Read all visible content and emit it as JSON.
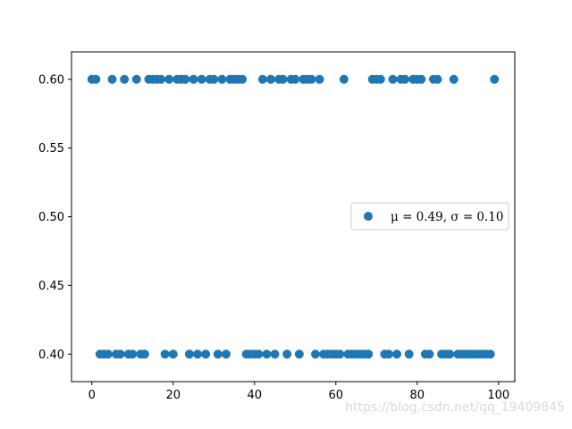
{
  "chart_data": {
    "type": "scatter",
    "title": "",
    "xlabel": "",
    "ylabel": "",
    "xlim": [
      -5,
      104
    ],
    "ylim": [
      0.38,
      0.62
    ],
    "xticks": [
      0,
      20,
      40,
      60,
      80,
      100
    ],
    "yticks": [
      0.4,
      0.45,
      0.5,
      0.55,
      0.6
    ],
    "xtick_labels": [
      "0",
      "20",
      "40",
      "60",
      "80",
      "100"
    ],
    "ytick_labels": [
      "0.40",
      "0.45",
      "0.50",
      "0.55",
      "0.60"
    ],
    "grid": false,
    "legend": {
      "placement": "center-right",
      "label": "μ = 0.49,  σ = 0.10"
    },
    "series": [
      {
        "name": "μ = 0.49,  σ = 0.10",
        "color": "#1f77b4",
        "x": [
          0,
          1,
          2,
          3,
          4,
          5,
          6,
          7,
          8,
          9,
          10,
          11,
          12,
          13,
          14,
          15,
          16,
          17,
          18,
          19,
          20,
          21,
          22,
          23,
          24,
          25,
          26,
          27,
          28,
          29,
          30,
          31,
          32,
          33,
          34,
          35,
          36,
          37,
          38,
          39,
          40,
          41,
          42,
          43,
          44,
          45,
          46,
          47,
          48,
          49,
          50,
          51,
          52,
          53,
          54,
          55,
          56,
          57,
          58,
          59,
          60,
          61,
          62,
          63,
          64,
          65,
          66,
          67,
          68,
          69,
          70,
          71,
          72,
          73,
          74,
          75,
          76,
          77,
          78,
          79,
          80,
          81,
          82,
          83,
          84,
          85,
          86,
          87,
          88,
          89,
          90,
          91,
          92,
          93,
          94,
          95,
          96,
          97,
          98,
          99
        ],
        "y": [
          0.6,
          0.6,
          0.4,
          0.4,
          0.4,
          0.6,
          0.4,
          0.4,
          0.6,
          0.4,
          0.4,
          0.6,
          0.4,
          0.4,
          0.6,
          0.6,
          0.6,
          0.6,
          0.4,
          0.6,
          0.4,
          0.6,
          0.6,
          0.6,
          0.4,
          0.6,
          0.4,
          0.6,
          0.4,
          0.6,
          0.6,
          0.4,
          0.6,
          0.4,
          0.6,
          0.6,
          0.6,
          0.6,
          0.4,
          0.4,
          0.4,
          0.4,
          0.6,
          0.4,
          0.6,
          0.4,
          0.6,
          0.6,
          0.4,
          0.6,
          0.6,
          0.4,
          0.6,
          0.6,
          0.6,
          0.4,
          0.6,
          0.4,
          0.4,
          0.4,
          0.4,
          0.4,
          0.6,
          0.4,
          0.4,
          0.4,
          0.4,
          0.4,
          0.4,
          0.6,
          0.6,
          0.6,
          0.4,
          0.4,
          0.6,
          0.4,
          0.6,
          0.6,
          0.4,
          0.6,
          0.6,
          0.6,
          0.4,
          0.4,
          0.6,
          0.6,
          0.4,
          0.4,
          0.4,
          0.6,
          0.4,
          0.4,
          0.4,
          0.4,
          0.4,
          0.4,
          0.4,
          0.4,
          0.4,
          0.6
        ]
      }
    ]
  },
  "watermark": "https://blog.csdn.net/qq_19409845"
}
